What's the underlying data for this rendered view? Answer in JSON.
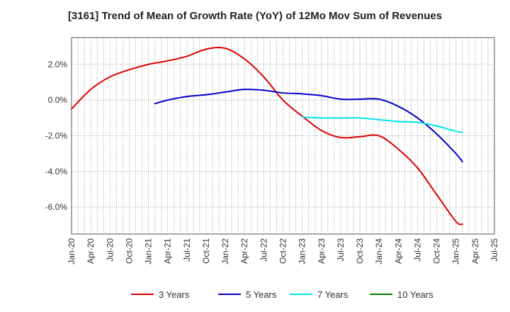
{
  "chart_data": {
    "type": "line",
    "title": "[3161]  Trend of Mean of Growth Rate (YoY) of 12Mo Mov Sum of Revenues",
    "xlabel": "",
    "ylabel": "",
    "ylim": [
      -7.5,
      3.5
    ],
    "yticks": [
      2.0,
      0.0,
      -2.0,
      -4.0,
      -6.0
    ],
    "ytick_labels": [
      "2.0%",
      "0.0%",
      "-2.0%",
      "-4.0%",
      "-6.0%"
    ],
    "x_start": "Jan-20",
    "x_end": "Apr-25",
    "xtick_labels": [
      "Jan-20",
      "Apr-20",
      "Jul-20",
      "Oct-20",
      "Jan-21",
      "Apr-21",
      "Jul-21",
      "Oct-21",
      "Jan-22",
      "Apr-22",
      "Jul-22",
      "Oct-22",
      "Jan-23",
      "Apr-23",
      "Jul-23",
      "Oct-23",
      "Jan-24",
      "Apr-24",
      "Jul-24",
      "Oct-24",
      "Jan-25",
      "Apr-25",
      "Jul-25"
    ],
    "grid": true,
    "legend_position": "bottom",
    "series": [
      {
        "name": "3 Years",
        "color": "#dd0000",
        "x_months": [
          0,
          3,
          6,
          9,
          12,
          15,
          18,
          21,
          24,
          27,
          30,
          33,
          36,
          39,
          42,
          45,
          48,
          51,
          54,
          57,
          60,
          61
        ],
        "values": [
          -0.5,
          0.6,
          1.3,
          1.7,
          2.0,
          2.2,
          2.45,
          2.85,
          2.9,
          2.3,
          1.3,
          0.0,
          -0.9,
          -1.7,
          -2.1,
          -2.05,
          -2.0,
          -2.75,
          -3.8,
          -5.3,
          -6.8,
          -6.95
        ]
      },
      {
        "name": "5 Years",
        "color": "#0000cc",
        "x_months": [
          13,
          15,
          18,
          21,
          24,
          27,
          30,
          33,
          36,
          39,
          42,
          45,
          48,
          51,
          54,
          57,
          60,
          61
        ],
        "values": [
          -0.2,
          0.0,
          0.2,
          0.3,
          0.45,
          0.6,
          0.55,
          0.4,
          0.35,
          0.25,
          0.05,
          0.05,
          0.05,
          -0.35,
          -1.0,
          -1.9,
          -3.0,
          -3.45
        ]
      },
      {
        "name": "7 Years",
        "color": "#00e5ee",
        "x_months": [
          36,
          39,
          42,
          45,
          48,
          51,
          54,
          57,
          60,
          61
        ],
        "values": [
          -0.95,
          -1.0,
          -1.0,
          -1.0,
          -1.1,
          -1.2,
          -1.25,
          -1.45,
          -1.75,
          -1.8
        ]
      },
      {
        "name": "10 Years",
        "color": "#008000",
        "x_months": [],
        "values": []
      }
    ]
  }
}
